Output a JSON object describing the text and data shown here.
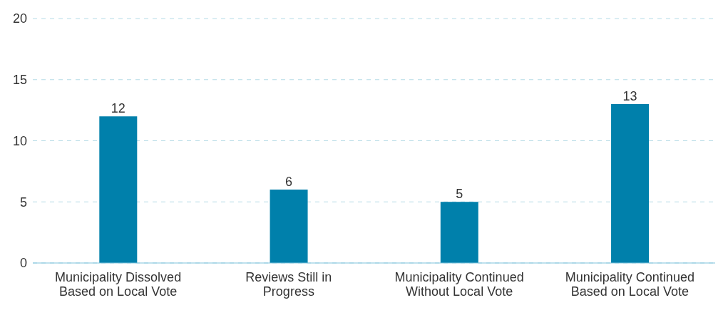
{
  "chart_data": {
    "type": "bar",
    "categories": [
      "Municipality Dissolved Based on Local Vote",
      "Reviews Still in Progress",
      "Municipality Continued Without Local Vote",
      "Municipality Continued Based on Local Vote"
    ],
    "values": [
      12,
      6,
      5,
      13
    ],
    "color": "#0080ab",
    "ylim": [
      0,
      20
    ],
    "yticks": [
      0,
      5,
      10,
      15,
      20
    ],
    "grid": "y",
    "data_labels": true
  }
}
